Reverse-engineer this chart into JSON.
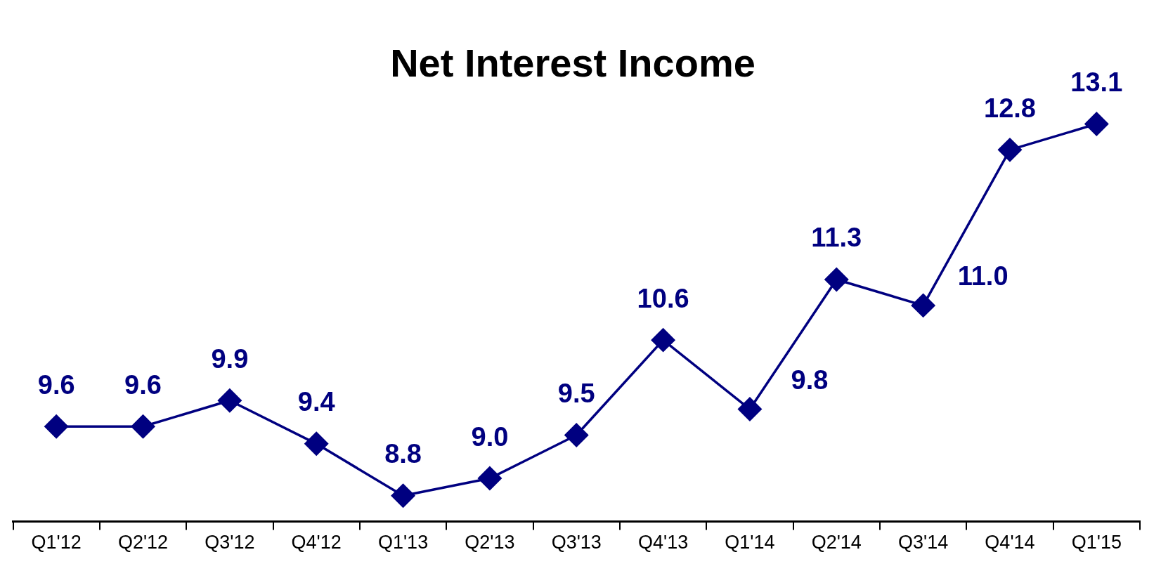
{
  "chart_data": {
    "type": "line",
    "title": "Net Interest Income",
    "categories": [
      "Q1'12",
      "Q2'12",
      "Q3'12",
      "Q4'12",
      "Q1'13",
      "Q2'13",
      "Q3'13",
      "Q4'13",
      "Q1'14",
      "Q2'14",
      "Q3'14",
      "Q4'14",
      "Q1'15"
    ],
    "series": [
      {
        "color": "#000080",
        "values": [
          9.6,
          9.6,
          9.9,
          9.4,
          8.8,
          9.0,
          9.5,
          10.6,
          9.8,
          11.3,
          11.0,
          12.8,
          13.1
        ],
        "value_labels": [
          "9.6",
          "9.6",
          "9.9",
          "9.4",
          "8.8",
          "9.0",
          "9.5",
          "10.6",
          "9.8",
          "11.3",
          "11.0",
          "12.8",
          "13.1"
        ]
      }
    ],
    "marker": "diamond",
    "line_style": "solid",
    "legend": false,
    "grid": false,
    "tick_labels": "x"
  }
}
